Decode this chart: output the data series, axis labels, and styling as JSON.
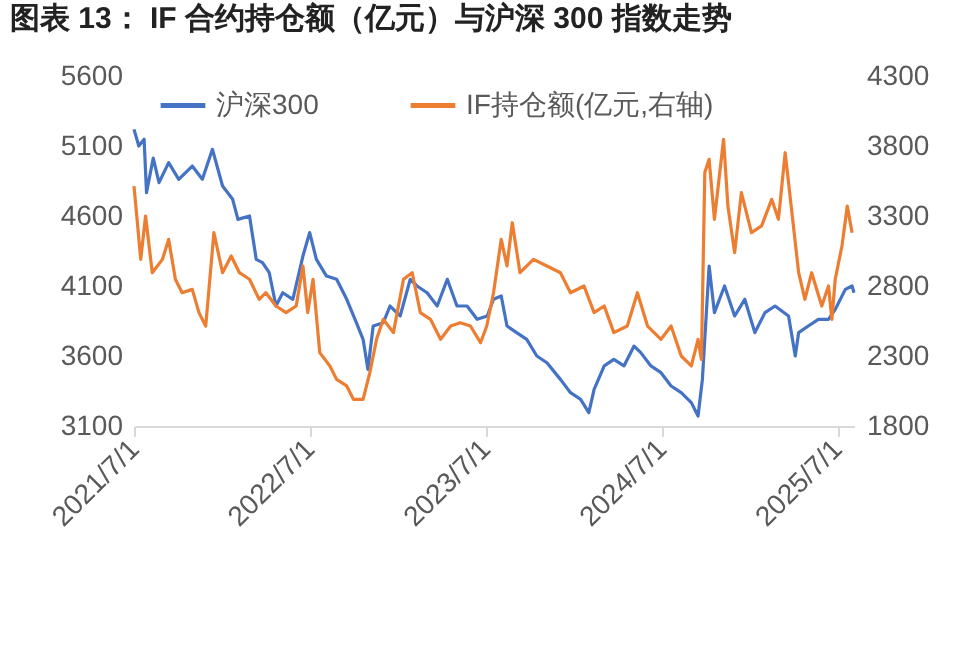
{
  "chart_data": {
    "type": "line",
    "title": "图表 13：  IF 合约持仓额（亿元）与沪深 300 指数走势",
    "legend": "top",
    "grid": false,
    "xlim": [
      "2021-07-01",
      "2025-08-05"
    ],
    "xticks": [
      {
        "value": "2021-07-01",
        "label": "2021/7/1"
      },
      {
        "value": "2022-07-01",
        "label": "2022/7/1"
      },
      {
        "value": "2023-07-01",
        "label": "2023/7/1"
      },
      {
        "value": "2024-07-01",
        "label": "2024/7/1"
      },
      {
        "value": "2025-07-01",
        "label": "2025/7/1"
      }
    ],
    "ylim": [
      3100,
      5600
    ],
    "yticks": [
      3100,
      3600,
      4100,
      4600,
      5100,
      5600
    ],
    "y2lim": [
      1800,
      4300
    ],
    "y2ticks": [
      1800,
      2300,
      2800,
      3300,
      3800,
      4300
    ],
    "series": [
      {
        "name": "沪深300",
        "color": "#4472c4",
        "x": [
          "2021-07-01",
          "2021-07-11",
          "2021-07-22",
          "2021-07-27",
          "2021-08-10",
          "2021-08-22",
          "2021-09-11",
          "2021-10-02",
          "2021-10-30",
          "2021-11-20",
          "2021-12-11",
          "2022-01-01",
          "2022-01-22",
          "2022-02-02",
          "2022-02-26",
          "2022-03-12",
          "2022-03-25",
          "2022-04-08",
          "2022-04-22",
          "2022-05-06",
          "2022-05-27",
          "2022-06-17",
          "2022-07-01",
          "2022-07-15",
          "2022-08-05",
          "2022-08-26",
          "2022-09-16",
          "2022-10-06",
          "2022-10-20",
          "2022-10-30",
          "2022-11-10",
          "2022-12-01",
          "2022-12-15",
          "2023-01-05",
          "2023-01-26",
          "2023-02-09",
          "2023-03-02",
          "2023-03-23",
          "2023-04-13",
          "2023-05-03",
          "2023-05-24",
          "2023-06-14",
          "2023-07-05",
          "2023-07-18",
          "2023-08-03",
          "2023-08-15",
          "2023-09-04",
          "2023-09-25",
          "2023-10-16",
          "2023-11-06",
          "2023-12-04",
          "2023-12-25",
          "2024-01-15",
          "2024-02-01",
          "2024-02-12",
          "2024-03-04",
          "2024-03-24",
          "2024-04-14",
          "2024-05-05",
          "2024-05-19",
          "2024-06-09",
          "2024-06-30",
          "2024-07-21",
          "2024-08-11",
          "2024-09-01",
          "2024-09-15",
          "2024-09-24",
          "2024-10-08",
          "2024-10-19",
          "2024-11-09",
          "2024-11-30",
          "2024-12-21",
          "2025-01-11",
          "2025-02-01",
          "2025-02-22",
          "2025-03-22",
          "2025-04-05",
          "2025-04-12",
          "2025-05-02",
          "2025-05-23",
          "2025-06-13",
          "2025-06-27",
          "2025-07-18",
          "2025-08-01",
          "2025-08-05"
        ],
        "values": [
          5219,
          5100,
          5148,
          4767,
          5014,
          4838,
          4981,
          4862,
          4957,
          4862,
          5076,
          4814,
          4719,
          4576,
          4600,
          4290,
          4267,
          4195,
          3957,
          4052,
          4005,
          4314,
          4481,
          4290,
          4171,
          4148,
          4005,
          3838,
          3719,
          3505,
          3814,
          3838,
          3957,
          3886,
          4148,
          4100,
          4052,
          3957,
          4148,
          3957,
          3957,
          3862,
          3886,
          4005,
          4029,
          3814,
          3767,
          3719,
          3600,
          3552,
          3433,
          3338,
          3290,
          3195,
          3362,
          3529,
          3576,
          3529,
          3671,
          3624,
          3529,
          3481,
          3386,
          3338,
          3267,
          3171,
          3433,
          4243,
          3910,
          4100,
          3886,
          4005,
          3767,
          3910,
          3957,
          3886,
          3600,
          3767,
          3814,
          3862,
          3862,
          3933,
          4076,
          4100,
          4052
        ]
      },
      {
        "name": "IF持仓额(亿元,右轴)",
        "color": "#ed7d31",
        "axis": "y2",
        "x": [
          "2021-07-01",
          "2021-07-08",
          "2021-07-15",
          "2021-07-25",
          "2021-08-08",
          "2021-08-29",
          "2021-09-11",
          "2021-09-25",
          "2021-10-09",
          "2021-10-30",
          "2021-11-13",
          "2021-11-27",
          "2021-12-14",
          "2022-01-01",
          "2022-01-19",
          "2022-02-05",
          "2022-02-26",
          "2022-03-18",
          "2022-04-01",
          "2022-04-22",
          "2022-05-13",
          "2022-06-03",
          "2022-06-17",
          "2022-06-27",
          "2022-07-08",
          "2022-07-22",
          "2022-08-12",
          "2022-08-26",
          "2022-09-16",
          "2022-09-30",
          "2022-10-20",
          "2022-11-03",
          "2022-11-17",
          "2022-12-01",
          "2022-12-22",
          "2023-01-12",
          "2023-01-30",
          "2023-02-16",
          "2023-03-09",
          "2023-03-30",
          "2023-04-20",
          "2023-05-10",
          "2023-05-31",
          "2023-06-21",
          "2023-07-04",
          "2023-07-18",
          "2023-08-03",
          "2023-08-15",
          "2023-08-26",
          "2023-09-11",
          "2023-10-09",
          "2023-11-06",
          "2023-12-04",
          "2023-12-25",
          "2024-01-22",
          "2024-02-12",
          "2024-03-04",
          "2024-03-24",
          "2024-04-21",
          "2024-05-12",
          "2024-06-02",
          "2024-06-30",
          "2024-07-21",
          "2024-08-11",
          "2024-09-01",
          "2024-09-15",
          "2024-09-22",
          "2024-09-29",
          "2024-10-08",
          "2024-10-19",
          "2024-11-07",
          "2024-11-16",
          "2024-11-30",
          "2024-12-14",
          "2025-01-04",
          "2025-01-25",
          "2025-02-15",
          "2025-03-01",
          "2025-03-15",
          "2025-03-29",
          "2025-04-12",
          "2025-04-25",
          "2025-05-09",
          "2025-05-30",
          "2025-06-13",
          "2025-06-20",
          "2025-06-27",
          "2025-07-11",
          "2025-07-22",
          "2025-08-01"
        ],
        "values": [
          3514,
          3252,
          2990,
          3300,
          2895,
          2990,
          3133,
          2848,
          2752,
          2776,
          2610,
          2514,
          3181,
          2895,
          3014,
          2895,
          2848,
          2705,
          2752,
          2657,
          2610,
          2657,
          2943,
          2610,
          2848,
          2324,
          2229,
          2133,
          2086,
          1990,
          1990,
          2181,
          2419,
          2562,
          2467,
          2848,
          2895,
          2610,
          2562,
          2419,
          2514,
          2538,
          2514,
          2395,
          2514,
          2752,
          3133,
          2943,
          3252,
          2895,
          2990,
          2943,
          2895,
          2752,
          2800,
          2610,
          2657,
          2467,
          2514,
          2752,
          2514,
          2419,
          2514,
          2300,
          2229,
          2419,
          2276,
          3610,
          3705,
          3276,
          3848,
          3371,
          3038,
          3467,
          3181,
          3229,
          3419,
          3276,
          3752,
          3324,
          2895,
          2705,
          2895,
          2657,
          2800,
          2562,
          2848,
          3086,
          3371,
          3181
        ]
      }
    ]
  }
}
